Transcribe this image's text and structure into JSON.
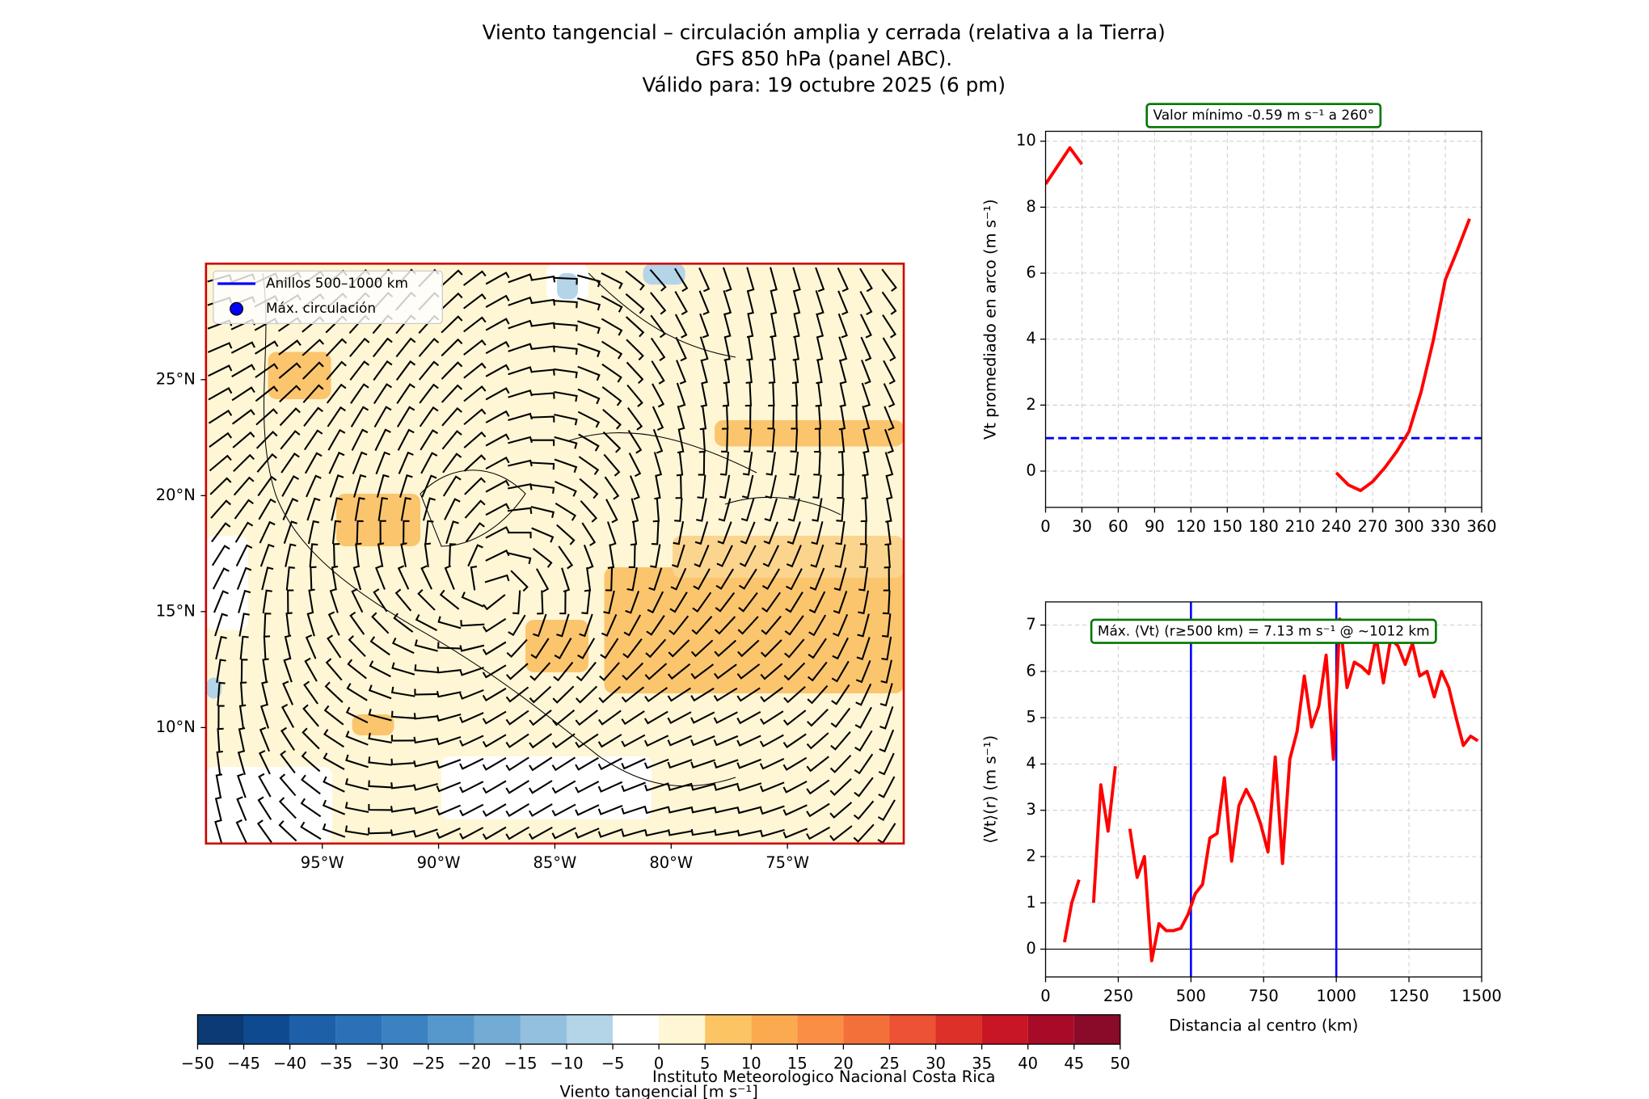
{
  "title": [
    "Viento tangencial – circulación amplia y cerrada (relativa a la Tierra)",
    "GFS 850 hPa (panel ABC).",
    "Válido para: 19 octubre 2025 (6 pm)"
  ],
  "footer": "Instituto Meteorologico Nacional Costa Rica",
  "chart_data": [
    {
      "type": "map",
      "xlim": [
        -100,
        -70
      ],
      "ylim": [
        5,
        30
      ],
      "xticks": [
        {
          "value": -95,
          "label": "95°W"
        },
        {
          "value": -90,
          "label": "90°W"
        },
        {
          "value": -85,
          "label": "85°W"
        },
        {
          "value": -80,
          "label": "80°W"
        },
        {
          "value": -75,
          "label": "75°W"
        }
      ],
      "yticks": [
        {
          "value": 10,
          "label": "10°N"
        },
        {
          "value": 15,
          "label": "15°N"
        },
        {
          "value": 20,
          "label": "20°N"
        },
        {
          "value": 25,
          "label": "25°N"
        }
      ],
      "legend": [
        {
          "name": "Anillos 500–1000 km",
          "color": "#0000ff",
          "marker": "line"
        },
        {
          "name": "Máx. circulación",
          "color": "#0000ff",
          "marker": "dot"
        }
      ],
      "legend_position": "upper left",
      "border_color": "#cc0000"
    },
    {
      "type": "colorbar",
      "label": "Viento tangencial [m s⁻¹]",
      "ticks": [
        {
          "value": -50,
          "label": "−50"
        },
        {
          "value": -45,
          "label": "−45"
        },
        {
          "value": -40,
          "label": "−40"
        },
        {
          "value": -35,
          "label": "−35"
        },
        {
          "value": -30,
          "label": "−30"
        },
        {
          "value": -25,
          "label": "−25"
        },
        {
          "value": -20,
          "label": "−20"
        },
        {
          "value": -15,
          "label": "−15"
        },
        {
          "value": -10,
          "label": "−10"
        },
        {
          "value": -5,
          "label": "−5"
        },
        0,
        5,
        10,
        15,
        20,
        25,
        30,
        35,
        40,
        45,
        50
      ],
      "colors": [
        "#0b3a75",
        "#0d4a8f",
        "#1d5fa8",
        "#2a71b8",
        "#3a82c2",
        "#5698cb",
        "#72abd4",
        "#93c0de",
        "#b4d4e8",
        "#ffffff",
        "#fff6d5",
        "#fdc463",
        "#fcaa4f",
        "#fa8e45",
        "#f4703b",
        "#ec5233",
        "#dc3029",
        "#c81624",
        "#a80b27",
        "#8a0a2a"
      ]
    },
    {
      "type": "line",
      "annotation": "Valor mínimo -0.59 m s⁻¹ a 260°",
      "y_label": "Vt promediado en arco (m s⁻¹)",
      "xlim": [
        0,
        360
      ],
      "xticks": [
        0,
        30,
        60,
        90,
        120,
        150,
        180,
        210,
        240,
        270,
        300,
        330,
        360
      ],
      "ylim": [
        -1.1,
        10.3
      ],
      "yticks": [
        0,
        2,
        4,
        6,
        8,
        10
      ],
      "grid": true,
      "x": [
        0,
        10,
        20,
        30,
        40,
        50,
        60,
        70,
        80,
        90,
        100,
        110,
        120,
        130,
        140,
        150,
        160,
        170,
        180,
        190,
        200,
        210,
        220,
        230,
        240,
        250,
        260,
        270,
        280,
        290,
        300,
        310,
        320,
        330,
        340,
        350
      ],
      "series": [
        {
          "color": "#ff0000",
          "values": [
            8.7,
            9.25,
            9.8,
            9.3,
            null,
            null,
            null,
            null,
            null,
            null,
            null,
            null,
            null,
            null,
            null,
            null,
            null,
            null,
            null,
            null,
            null,
            null,
            null,
            null,
            -0.05,
            -0.42,
            -0.59,
            -0.32,
            0.1,
            0.6,
            1.2,
            2.4,
            3.95,
            5.8,
            6.7,
            7.65
          ]
        }
      ],
      "hlines": [
        {
          "value": 1,
          "color": "#0000ff",
          "dashed": true
        }
      ]
    },
    {
      "type": "line",
      "annotation": "Máx. ⟨Vt⟩ (r≥500 km) = 7.13 m s⁻¹ @ ~1012 km",
      "x_label": "Distancia al centro (km)",
      "y_label": "⟨Vt⟩(r) (m s⁻¹)",
      "xlim": [
        0,
        1500
      ],
      "xticks": [
        0,
        250,
        500,
        750,
        1000,
        1250,
        1500
      ],
      "ylim": [
        -0.6,
        7.5
      ],
      "yticks": [
        0,
        1,
        2,
        3,
        4,
        5,
        6,
        7
      ],
      "grid": true,
      "x": [
        65,
        90,
        115,
        140,
        165,
        190,
        215,
        240,
        265,
        290,
        315,
        340,
        365,
        390,
        415,
        440,
        465,
        490,
        515,
        540,
        565,
        590,
        615,
        640,
        665,
        690,
        715,
        740,
        765,
        790,
        815,
        840,
        865,
        890,
        915,
        940,
        965,
        990,
        1012,
        1037,
        1062,
        1087,
        1112,
        1137,
        1162,
        1187,
        1212,
        1237,
        1262,
        1287,
        1312,
        1337,
        1362,
        1387,
        1412,
        1437,
        1462,
        1487
      ],
      "series": [
        {
          "color": "#ff0000",
          "values": [
            0.15,
            1.0,
            1.5,
            null,
            1.0,
            3.55,
            2.55,
            3.95,
            null,
            2.6,
            1.55,
            2.0,
            -0.25,
            0.55,
            0.4,
            0.4,
            0.45,
            0.75,
            1.2,
            1.4,
            2.4,
            2.5,
            3.7,
            1.9,
            3.1,
            3.45,
            3.15,
            2.7,
            2.1,
            4.15,
            1.85,
            4.1,
            4.7,
            5.9,
            4.8,
            5.25,
            6.35,
            4.1,
            7.13,
            5.65,
            6.2,
            6.1,
            5.95,
            6.75,
            5.75,
            6.7,
            6.55,
            6.15,
            6.6,
            5.9,
            6.0,
            5.45,
            6.0,
            5.65,
            5.0,
            4.4,
            4.6,
            4.5
          ]
        }
      ],
      "hlines": [
        {
          "value": 0,
          "color": "#000000",
          "dashed": false
        }
      ],
      "vlines": [
        {
          "value": 500,
          "color": "#0000ff"
        },
        {
          "value": 1000,
          "color": "#0000ff"
        }
      ]
    }
  ]
}
